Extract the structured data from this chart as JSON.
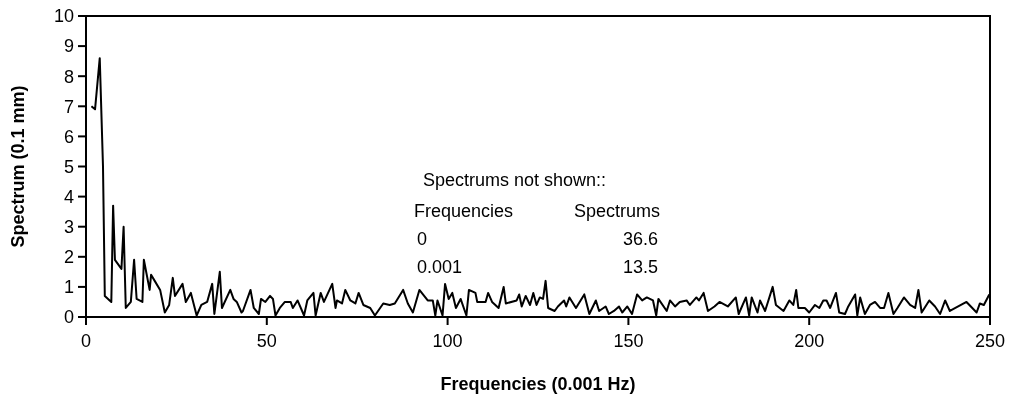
{
  "chart_data": {
    "type": "line",
    "xlabel": "Frequencies (0.001 Hz)",
    "ylabel": "Spectrum (0.1 mm)",
    "xlim": [
      0,
      250
    ],
    "xticks": [
      0,
      50,
      100,
      150,
      200,
      250
    ],
    "ylim": [
      0,
      10
    ],
    "yticks": [
      0,
      1,
      2,
      3,
      4,
      5,
      6,
      7,
      8,
      9,
      10
    ],
    "grid": false,
    "marker": "none",
    "line_style": "solid",
    "annotations": [
      "Spectrums not shown::",
      "Frequencies",
      "Spectrums",
      "0",
      "36.6",
      "0.001",
      "13.5"
    ],
    "series": [
      {
        "color": "#000000",
        "x": [
          1.5,
          2.5,
          3.8,
          4.7,
          5.2,
          7,
          7.5,
          8,
          9.8,
          10.4,
          11,
          12.4,
          13.3,
          14,
          15.6,
          16,
          17.6,
          18,
          19,
          20.5,
          21.8,
          23,
          24,
          24.6,
          26.7,
          27.6,
          29,
          30.6,
          31.9,
          33.5,
          34.9,
          35.5,
          37,
          37.6,
          39.9,
          40.8,
          41.7,
          43,
          43.4,
          45.5,
          46.4,
          47.8,
          48.4,
          49.6,
          50.9,
          51.7,
          52.4,
          53.6,
          55,
          56.6,
          57.2,
          58.5,
          60.3,
          61.2,
          62.9,
          63.5,
          64.9,
          65.8,
          68.1,
          69,
          69.4,
          70.8,
          71.7,
          73.1,
          74.5,
          75.4,
          76.7,
          78.6,
          79.9,
          82.2,
          84,
          85.4,
          87.7,
          89,
          90.4,
          92.2,
          94.5,
          95.9,
          96.6,
          97.2,
          98.6,
          99.3,
          100.3,
          101.3,
          102.3,
          103.6,
          105.2,
          105.9,
          107.7,
          108.2,
          110.5,
          111.2,
          112.3,
          114.1,
          115.5,
          116.1,
          119.1,
          119.8,
          120.5,
          121.6,
          122.8,
          123.7,
          124.6,
          125.5,
          126.4,
          127.1,
          127.8,
          129.6,
          130.5,
          132.2,
          132.8,
          133.7,
          135.5,
          137.8,
          139.2,
          141,
          141.9,
          143.7,
          144.6,
          146,
          147.4,
          148.3,
          149.7,
          151,
          152.4,
          153.8,
          155.1,
          156.8,
          157.7,
          158.3,
          160.6,
          161.5,
          162.9,
          164.2,
          166.1,
          167,
          168.8,
          169.5,
          170.8,
          172,
          173.8,
          175.2,
          177.5,
          179.7,
          180.5,
          182.5,
          183.4,
          184.1,
          185.7,
          186.4,
          187.8,
          189.9,
          190.8,
          192.9,
          194.5,
          195.6,
          196.4,
          197,
          198.8,
          200,
          201.6,
          202.8,
          203.9,
          204.8,
          205.8,
          207.4,
          208.3,
          209.9,
          210.8,
          212.7,
          213.3,
          214.1,
          215.4,
          216.8,
          218.2,
          219.6,
          220.7,
          221.9,
          223.3,
          224.4,
          226.2,
          227.9,
          229.3,
          230.2,
          231.1,
          233.2,
          234.8,
          236.2,
          237.6,
          238.9,
          241.2,
          243.5,
          246.3,
          247.2,
          248.3,
          249.8
        ],
        "values": [
          7,
          6.9,
          8.6,
          5,
          0.7,
          0.5,
          3.7,
          1.9,
          1.6,
          3,
          0.3,
          0.5,
          1.9,
          0.6,
          0.5,
          1.9,
          0.9,
          1.4,
          1.2,
          0.9,
          0.15,
          0.4,
          1.3,
          0.7,
          1.1,
          0.5,
          0.8,
          0.05,
          0.4,
          0.5,
          1.1,
          0.1,
          1.5,
          0.3,
          0.9,
          0.6,
          0.5,
          0.15,
          0.2,
          0.9,
          0.3,
          0.1,
          0.6,
          0.5,
          0.7,
          0.6,
          0.05,
          0.3,
          0.5,
          0.5,
          0.3,
          0.55,
          0.05,
          0.55,
          0.8,
          0.05,
          0.8,
          0.5,
          1.1,
          0.3,
          0.55,
          0.45,
          0.9,
          0.55,
          0.45,
          0.8,
          0.4,
          0.3,
          0.05,
          0.45,
          0.4,
          0.45,
          0.9,
          0.45,
          0.15,
          0.9,
          0.55,
          0.55,
          0.05,
          0.55,
          0.05,
          1.1,
          0.6,
          0.8,
          0.3,
          0.6,
          0.05,
          0.9,
          0.8,
          0.5,
          0.5,
          0.8,
          0.5,
          0.3,
          1,
          0.45,
          0.55,
          0.75,
          0.35,
          0.7,
          0.4,
          0.8,
          0.4,
          0.65,
          0.6,
          1.2,
          0.3,
          0.2,
          0.35,
          0.55,
          0.35,
          0.65,
          0.3,
          0.75,
          0.1,
          0.55,
          0.2,
          0.35,
          0.1,
          0.2,
          0.35,
          0.15,
          0.35,
          0.1,
          0.75,
          0.55,
          0.65,
          0.55,
          0.05,
          0.6,
          0.2,
          0.55,
          0.35,
          0.5,
          0.55,
          0.4,
          0.65,
          0.55,
          0.8,
          0.2,
          0.35,
          0.5,
          0.35,
          0.65,
          0.1,
          0.65,
          0.05,
          0.65,
          0.15,
          0.55,
          0.2,
          1,
          0.4,
          0.2,
          0.55,
          0.4,
          0.9,
          0.3,
          0.3,
          0.15,
          0.4,
          0.3,
          0.55,
          0.55,
          0.3,
          0.8,
          0.15,
          0.1,
          0.35,
          0.75,
          0.05,
          0.65,
          0.1,
          0.4,
          0.5,
          0.3,
          0.3,
          0.8,
          0.1,
          0.3,
          0.65,
          0.4,
          0.3,
          0.9,
          0.15,
          0.55,
          0.35,
          0.1,
          0.55,
          0.2,
          0.35,
          0.5,
          0.15,
          0.45,
          0.4,
          0.75
        ]
      }
    ]
  }
}
